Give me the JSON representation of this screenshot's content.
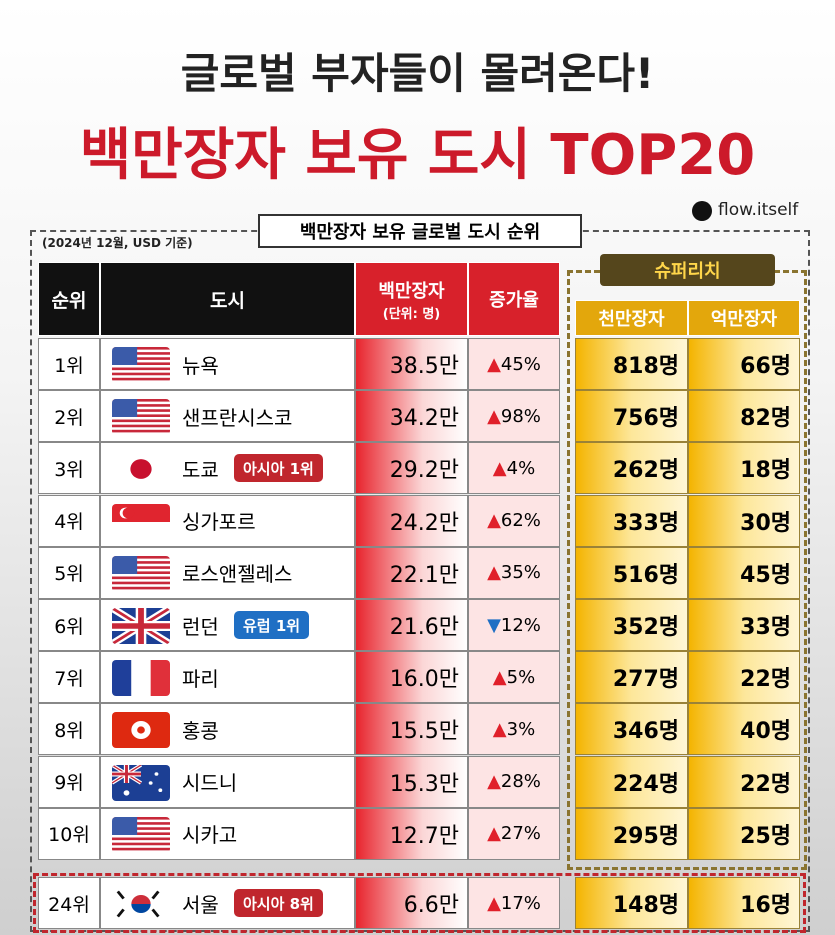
{
  "header": {
    "title_line1": "글로벌 부자들이 몰려온다!",
    "title_line2": "백만장자 보유 도시 TOP20",
    "handle": "flow.itself",
    "subtitle": "백만장자 보유 글로벌 도시 순위",
    "note": "(2024년 12월, USD 기준)"
  },
  "table": {
    "columns": {
      "rank": "순위",
      "city": "도시",
      "millionaires": "백만장자",
      "millionaires_unit": "(단위: 명)",
      "growth": "증가율",
      "super_rich": "슈퍼리치",
      "ten_millionaires": "천만장자",
      "billionaires": "억만장자"
    },
    "rows": [
      {
        "rank": "1위",
        "city": "뉴욕",
        "millionaires": "38.5만",
        "arrow": "▲",
        "growth": "45%",
        "ten_millionaires": "818명",
        "billionaires": "66명"
      },
      {
        "rank": "2위",
        "city": "샌프란시스코",
        "millionaires": "34.2만",
        "arrow": "▲",
        "growth": "98%",
        "ten_millionaires": "756명",
        "billionaires": "82명"
      },
      {
        "rank": "3위",
        "city": "도쿄",
        "badge": {
          "text": "아시아 1위",
          "color": "#c0262d"
        },
        "millionaires": "29.2만",
        "arrow": "▲",
        "growth": "4%",
        "ten_millionaires": "262명",
        "billionaires": "18명"
      },
      {
        "rank": "4위",
        "city": "싱가포르",
        "millionaires": "24.2만",
        "arrow": "▲",
        "growth": "62%",
        "ten_millionaires": "333명",
        "billionaires": "30명"
      },
      {
        "rank": "5위",
        "city": "로스앤젤레스",
        "millionaires": "22.1만",
        "arrow": "▲",
        "growth": "35%",
        "ten_millionaires": "516명",
        "billionaires": "45명"
      },
      {
        "rank": "6위",
        "city": "런던",
        "badge": {
          "text": "유럽 1위",
          "color": "#1f6fc4"
        },
        "millionaires": "21.6만",
        "arrow": "▼",
        "growth": "12%",
        "ten_millionaires": "352명",
        "billionaires": "33명"
      },
      {
        "rank": "7위",
        "city": "파리",
        "millionaires": "16.0만",
        "arrow": "▲",
        "growth": "5%",
        "ten_millionaires": "277명",
        "billionaires": "22명"
      },
      {
        "rank": "8위",
        "city": "홍콩",
        "millionaires": "15.5만",
        "arrow": "▲",
        "growth": "3%",
        "ten_millionaires": "346명",
        "billionaires": "40명"
      },
      {
        "rank": "9위",
        "city": "시드니",
        "millionaires": "15.3만",
        "arrow": "▲",
        "growth": "28%",
        "ten_millionaires": "224명",
        "billionaires": "22명"
      },
      {
        "rank": "10위",
        "city": "시카고",
        "millionaires": "12.7만",
        "arrow": "▲",
        "growth": "27%",
        "ten_millionaires": "295명",
        "billionaires": "25명"
      }
    ],
    "featured": {
      "rank": "24위",
      "city": "서울",
      "badge": {
        "text": "아시아 8위",
        "color": "#c0262d"
      },
      "millionaires": "6.6만",
      "arrow": "▲",
      "growth": "17%",
      "ten_millionaires": "148명",
      "billionaires": "16명"
    }
  }
}
